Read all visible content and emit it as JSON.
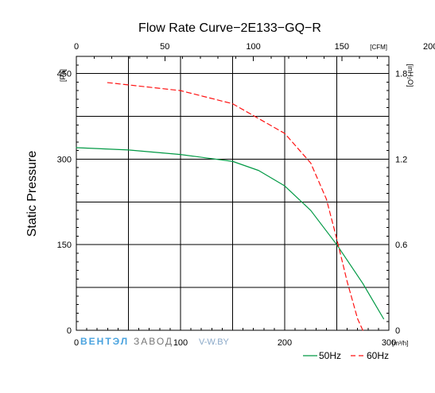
{
  "chart_data": {
    "type": "line",
    "title": "Flow Rate Curve−2E133−GQ−R",
    "ylabel": "Static Pressure",
    "x": {
      "m3h": {
        "label": "[m³/h]",
        "range": [
          0,
          300
        ],
        "ticks": [
          0,
          100,
          200,
          300
        ]
      },
      "cfm": {
        "label": "[CFM]",
        "range": [
          0,
          200
        ],
        "ticks": [
          0,
          50,
          100,
          150,
          200
        ]
      }
    },
    "y": {
      "pa": {
        "label": "[Pa]",
        "range": [
          0,
          450
        ],
        "ticks": [
          0,
          150,
          300,
          450
        ]
      },
      "inh2o": {
        "label": "[inH₂O]",
        "range": [
          0,
          1.8
        ],
        "ticks": [
          0,
          0.6,
          1.2,
          1.8
        ]
      }
    },
    "series": [
      {
        "name": "50Hz",
        "color": "#009944",
        "style": "solid",
        "points": [
          [
            0,
            320
          ],
          [
            50,
            316
          ],
          [
            100,
            308
          ],
          [
            150,
            296
          ],
          [
            175,
            280
          ],
          [
            200,
            253
          ],
          [
            225,
            210
          ],
          [
            250,
            150
          ],
          [
            275,
            82
          ],
          [
            295,
            20
          ]
        ]
      },
      {
        "name": "60Hz",
        "color": "#ff1111",
        "style": "dashed",
        "points": [
          [
            30,
            434
          ],
          [
            50,
            430
          ],
          [
            100,
            420
          ],
          [
            150,
            397
          ],
          [
            200,
            345
          ],
          [
            225,
            293
          ],
          [
            240,
            230
          ],
          [
            250,
            160
          ],
          [
            260,
            85
          ],
          [
            270,
            20
          ],
          [
            275,
            0
          ]
        ]
      }
    ],
    "legend": {
      "position": "bottom-right",
      "entries": [
        "50Hz",
        "60Hz"
      ]
    },
    "grid": true
  },
  "branding": {
    "company": "ВЕНТЭЛ",
    "tagline": "ЗАВОД",
    "website": "V-W.BY",
    "color": "#4aa3df"
  }
}
